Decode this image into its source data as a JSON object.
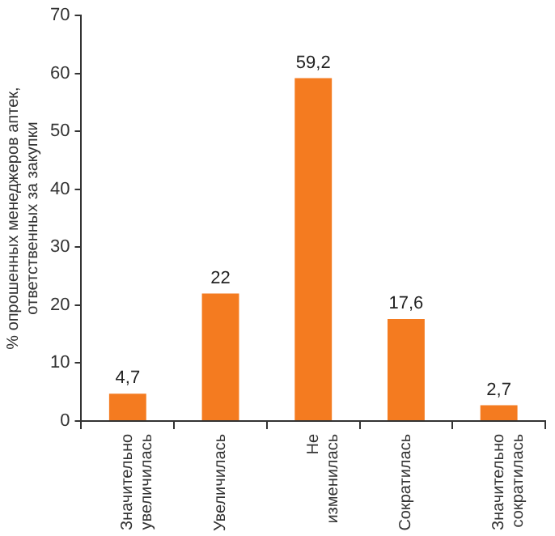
{
  "chart_data": {
    "type": "bar",
    "ylabel": "% опрошенных менеджеров аптек, ответственных за закупки",
    "categories": [
      "Значительно увеличилась",
      "Увеличилась",
      "Не изменилась",
      "Сократилась",
      "Значительно сократилась"
    ],
    "values": [
      4.7,
      22,
      59.2,
      17.6,
      2.7
    ],
    "value_labels": [
      "4,7",
      "22",
      "59,2",
      "17,6",
      "2,7"
    ],
    "color": "#f47b20",
    "ylim": [
      0,
      70
    ],
    "yticks": [
      0,
      10,
      20,
      30,
      40,
      50,
      60,
      70
    ],
    "grid": false,
    "legend": false
  }
}
